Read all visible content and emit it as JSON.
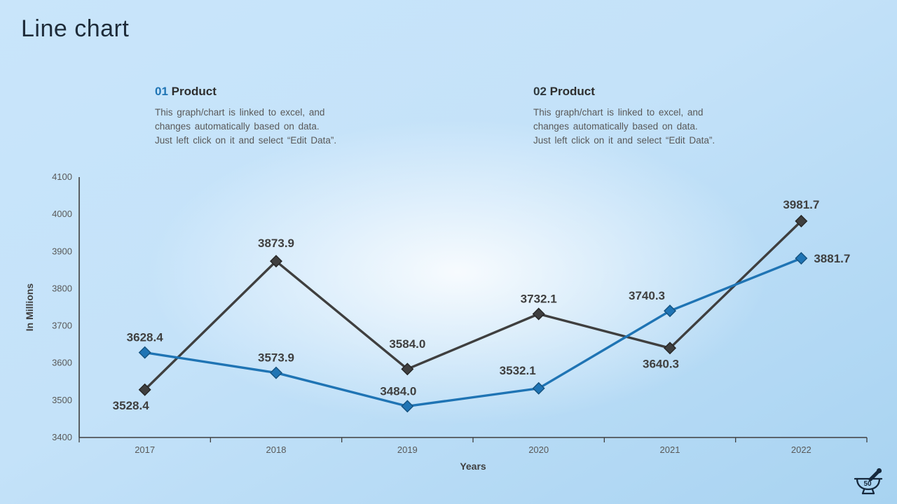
{
  "slide": {
    "title": "Line chart"
  },
  "callouts": [
    {
      "number": "01",
      "heading": "Product",
      "body_lines": [
        "This graph/chart is linked to excel, and",
        "changes automatically based on data.",
        "Just left click on it and select “Edit Data”."
      ]
    },
    {
      "number": "02",
      "heading": "Product",
      "body_lines": [
        "This graph/chart is linked to excel, and",
        "changes automatically based on data.",
        "Just left click on it and select “Edit Data”."
      ]
    }
  ],
  "page_badge": {
    "number": "50",
    "icon": "mortar-pestle-icon"
  },
  "colors": {
    "accent_blue": "#1f74b4",
    "blue_marker_stroke": "#15527f",
    "dark_series": "#3f3f3f",
    "dark_marker_stroke": "#262626",
    "axis": "#3f3f3f",
    "tick_text": "#595959",
    "data_label": "#3f3f3f"
  },
  "chart_data": {
    "type": "line",
    "x": [
      "2017",
      "2018",
      "2019",
      "2020",
      "2021",
      "2022"
    ],
    "series": [
      {
        "name": "dark-series",
        "color": "#3f3f3f",
        "values": [
          3528.4,
          3873.9,
          3584.0,
          3732.1,
          3640.3,
          3981.7
        ],
        "label_placement": [
          {
            "side": "below",
            "dx": -20,
            "dy": 0
          },
          {
            "side": "above",
            "dx": 0,
            "dy": -4
          },
          {
            "side": "above",
            "dx": 0,
            "dy": -14
          },
          {
            "side": "above",
            "dx": 0,
            "dy": 0
          },
          {
            "side": "below",
            "dx": -13,
            "dy": 0
          },
          {
            "side": "above",
            "dx": 0,
            "dy": -2
          }
        ]
      },
      {
        "name": "blue-series",
        "color": "#1f74b4",
        "values": [
          3628.4,
          3573.9,
          3484.0,
          3532.1,
          3740.3,
          3881.7
        ],
        "label_placement": [
          {
            "side": "above",
            "dx": 0,
            "dy": 0
          },
          {
            "side": "above",
            "dx": 0,
            "dy": 0
          },
          {
            "side": "above",
            "dx": -13,
            "dy": 0
          },
          {
            "side": "above",
            "dx": -30,
            "dy": -4
          },
          {
            "side": "above",
            "dx": -33,
            "dy": 0
          },
          {
            "side": "right",
            "dx": 18,
            "dy": 6
          }
        ]
      }
    ],
    "xlabel": "Years",
    "ylabel": "In Millions",
    "ylim": [
      3400,
      4100
    ],
    "ytick_step": 100,
    "grid": false,
    "legend": false,
    "marker": "diamond"
  }
}
